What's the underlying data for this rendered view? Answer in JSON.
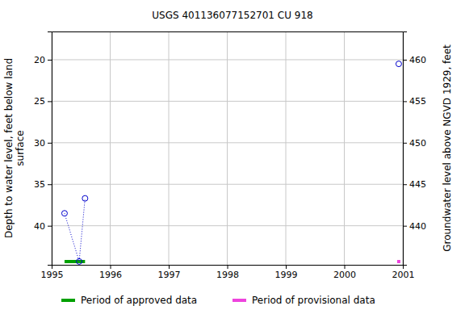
{
  "chart_data": {
    "type": "line",
    "title": "USGS 401136077152701 CU   918",
    "ylabel": [
      "Depth to water level, feet below land",
      "surface"
    ],
    "y2label": "Groundwater level above NGVD 1929, feet",
    "xlim": [
      1995,
      2001
    ],
    "xticks": [
      1995,
      1996,
      1997,
      1998,
      1999,
      2000,
      2001
    ],
    "ylim": [
      44.7,
      16.6
    ],
    "yticks": [
      20,
      25,
      30,
      35,
      40
    ],
    "y2lim": [
      435.3,
      463.4
    ],
    "y2ticks": [
      440,
      445,
      450,
      455,
      460
    ],
    "grid": true,
    "series": [
      {
        "color": "#0000cc",
        "marker": "circle",
        "line_style": "dotted",
        "x": [
          1995.22,
          1995.47,
          1995.57,
          1998.0,
          2000.93
        ],
        "values": [
          38.5,
          44.3,
          36.7,
          null,
          20.5
        ]
      }
    ],
    "periods": [
      {
        "name": "Period of approved data",
        "color": "#00a000",
        "start": 1995.22,
        "end": 1995.57
      },
      {
        "name": "Period of provisional data",
        "color": "#ee44dd",
        "start": 2000.93,
        "end": 2000.93
      }
    ]
  }
}
